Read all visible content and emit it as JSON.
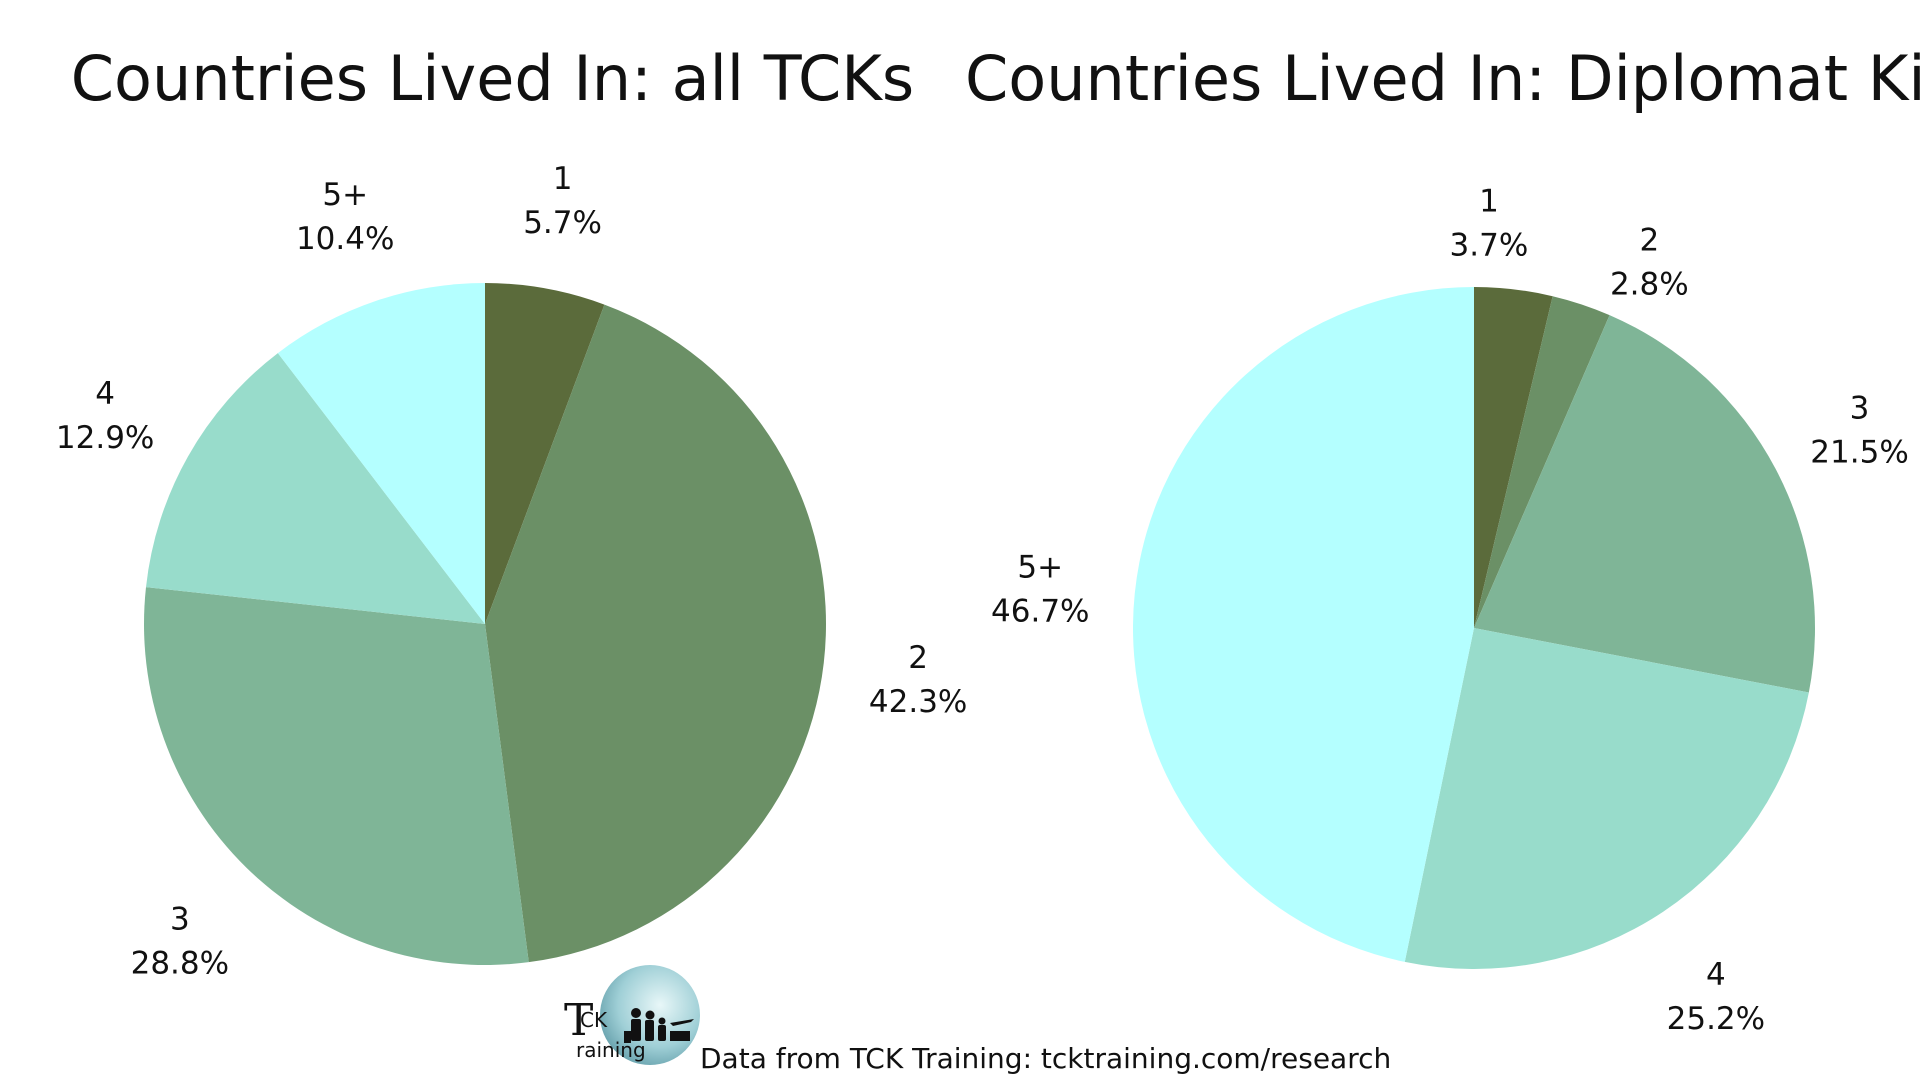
{
  "chart_data": [
    {
      "type": "pie",
      "title": "Countries Lived In: all TCKs",
      "categories": [
        "1",
        "2",
        "3",
        "4",
        "5+"
      ],
      "values": [
        5.7,
        42.3,
        28.8,
        12.9,
        10.4
      ],
      "value_labels": [
        "5.7%",
        "42.3%",
        "28.8%",
        "12.9%",
        "10.4%"
      ],
      "colors": [
        "#5b6b3b",
        "#6b9066",
        "#7fb597",
        "#98dccb",
        "#b4ffff"
      ]
    },
    {
      "type": "pie",
      "title": "Countries Lived In: Diplomat Kids",
      "categories": [
        "1",
        "2",
        "3",
        "4",
        "5+"
      ],
      "values": [
        3.7,
        2.8,
        21.5,
        25.2,
        46.7
      ],
      "value_labels": [
        "3.7%",
        "2.8%",
        "21.5%",
        "25.2%",
        "46.7%"
      ],
      "colors": [
        "#5b6b3b",
        "#6b9066",
        "#7fb597",
        "#98dccb",
        "#b4ffff"
      ]
    }
  ],
  "footer": {
    "source": "Data from TCK Training: tcktraining.com/research",
    "logo_text_top": "CK",
    "logo_text_bottom": "raining",
    "logo_letter": "T"
  }
}
